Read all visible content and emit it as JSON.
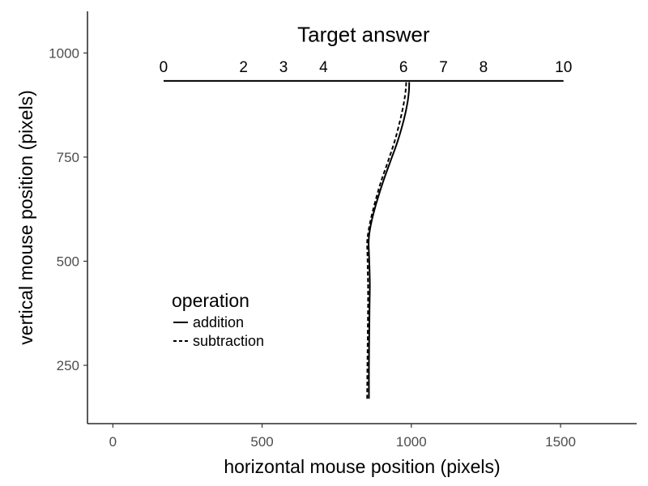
{
  "chart_data": {
    "type": "line",
    "title": "",
    "xlabel": "horizontal mouse position (pixels)",
    "ylabel": "vertical mouse position (pixels)",
    "xlim": [
      -85,
      1755
    ],
    "ylim": [
      110,
      1100
    ],
    "x_ticks": [
      0,
      500,
      1000,
      1500
    ],
    "y_ticks": [
      250,
      500,
      750,
      1000
    ],
    "grid": false,
    "annotation": {
      "text": "Target answer",
      "x": 840,
      "y": 1045
    },
    "number_line": {
      "y": 933,
      "x_start": 170,
      "x_end": 1510,
      "label_y": 968,
      "ticks": [
        {
          "label": "0",
          "x": 170
        },
        {
          "label": "2",
          "x": 438
        },
        {
          "label": "3",
          "x": 572
        },
        {
          "label": "4",
          "x": 706
        },
        {
          "label": "6",
          "x": 974
        },
        {
          "label": "7",
          "x": 1108
        },
        {
          "label": "8",
          "x": 1242
        },
        {
          "label": "10",
          "x": 1510
        }
      ]
    },
    "legend": {
      "title": "operation",
      "placement": "bottom-left"
    },
    "series": [
      {
        "name": "addition",
        "dash": "solid",
        "x": [
          858,
          858,
          859,
          860,
          861,
          860,
          858,
          857,
          860,
          868,
          883,
          905,
          930,
          955,
          975,
          987,
          992,
          993
        ],
        "y": [
          170,
          250,
          320,
          390,
          440,
          480,
          520,
          545,
          570,
          600,
          640,
          690,
          740,
          790,
          840,
          880,
          910,
          930
        ]
      },
      {
        "name": "subtraction",
        "dash": "dashed",
        "x": [
          852,
          853,
          854,
          855,
          855,
          854,
          853,
          852,
          856,
          864,
          878,
          898,
          922,
          945,
          963,
          975,
          981,
          983
        ],
        "y": [
          170,
          250,
          320,
          390,
          440,
          480,
          520,
          545,
          570,
          600,
          640,
          690,
          740,
          790,
          840,
          880,
          910,
          930
        ]
      }
    ]
  }
}
